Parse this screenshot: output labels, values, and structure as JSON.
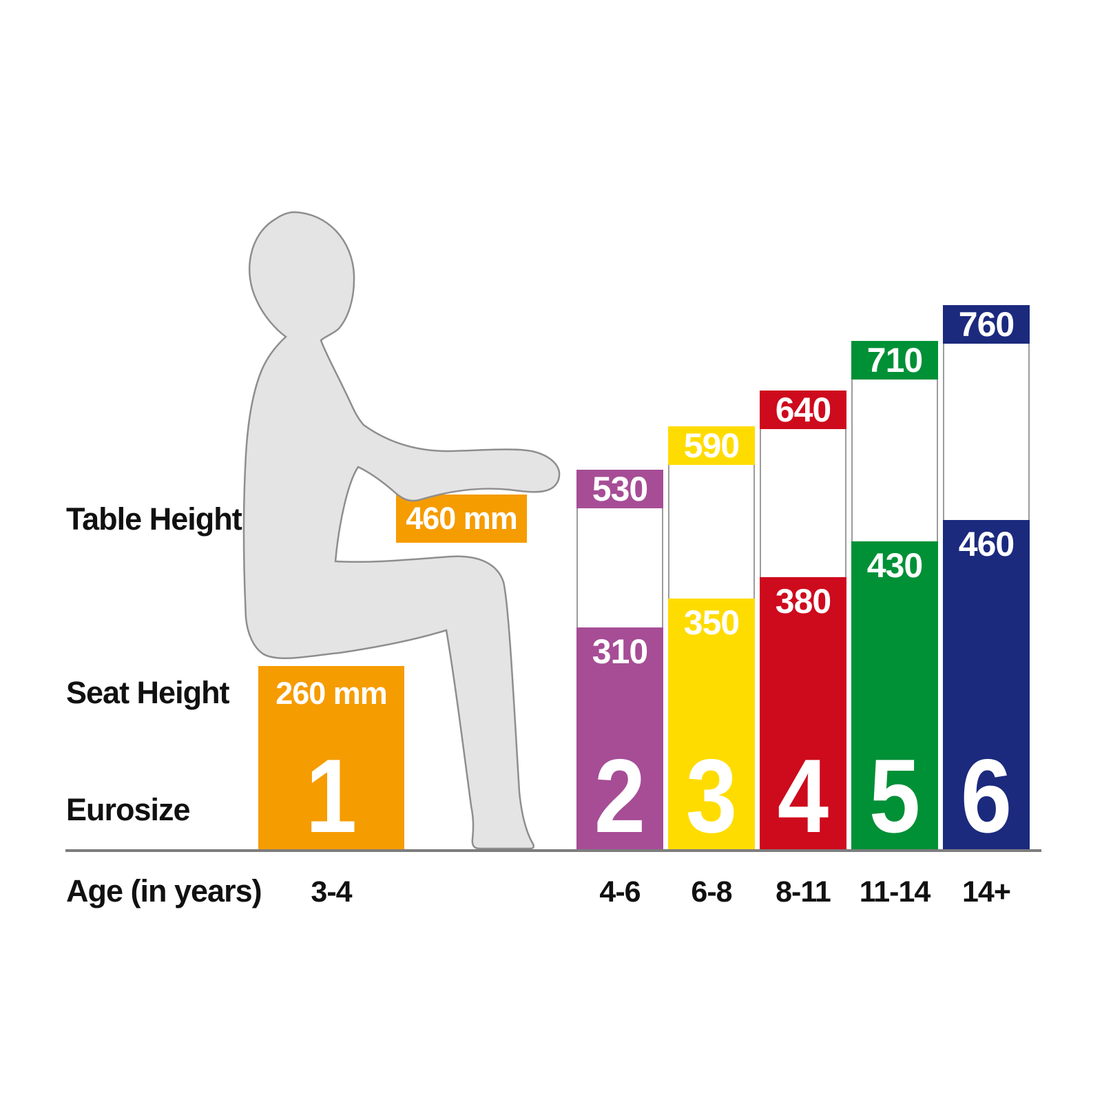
{
  "row_labels": {
    "table_height": "Table Height",
    "seat_height": "Seat Height",
    "eurosize": "Eurosize",
    "age": "Age (in years)"
  },
  "size1": {
    "table_label": "460 mm",
    "seat_label": "260 mm"
  },
  "colors": {
    "figure_fill": "#E4E4E4",
    "figure_outline": "#8E8E8E",
    "baseline": "#7D7D7D",
    "label_text": "#111111",
    "value_text": "#FFFFFF"
  },
  "chart_data": {
    "type": "bar",
    "unit": "mm",
    "title": "",
    "categories": [
      "1",
      "2",
      "3",
      "4",
      "5",
      "6"
    ],
    "ages": [
      "3-4",
      "4-6",
      "6-8",
      "8-11",
      "11-14",
      "14+"
    ],
    "series": [
      {
        "name": "Table Height",
        "values": [
          460,
          530,
          590,
          640,
          710,
          760
        ]
      },
      {
        "name": "Seat Height",
        "values": [
          260,
          310,
          350,
          380,
          430,
          460
        ]
      }
    ],
    "bar_colors": [
      "#F59C00",
      "#A64D96",
      "#FFDC00",
      "#CE0A1D",
      "#009036",
      "#1B2A7D"
    ],
    "ylim": [
      0,
      800
    ],
    "grid": false,
    "legend": false
  }
}
